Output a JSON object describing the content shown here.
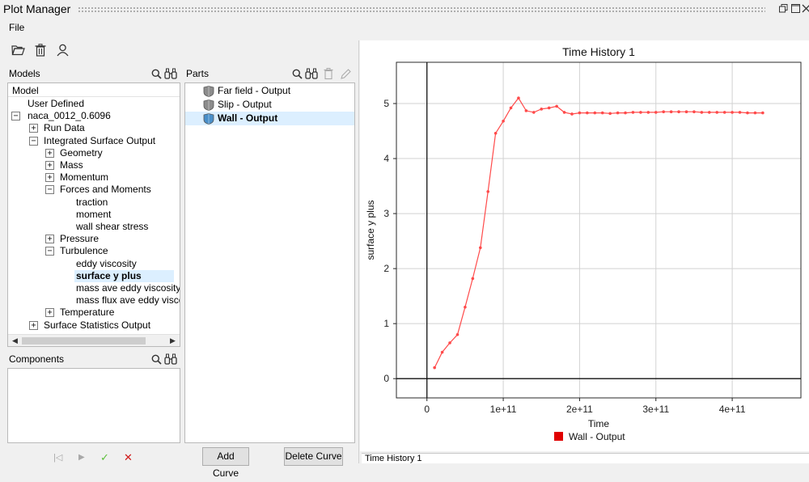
{
  "window": {
    "title": "Plot Manager"
  },
  "menu": {
    "file": "File"
  },
  "models": {
    "header": "Models",
    "column": "Model",
    "tree": [
      {
        "label": "User Defined",
        "level": 0,
        "exp": ""
      },
      {
        "label": "naca_0012_0.6096",
        "level": 0,
        "exp": "-"
      },
      {
        "label": "Run Data",
        "level": 1,
        "exp": "+"
      },
      {
        "label": "Integrated Surface Output",
        "level": 1,
        "exp": "-"
      },
      {
        "label": "Geometry",
        "level": 2,
        "exp": "+"
      },
      {
        "label": "Mass",
        "level": 2,
        "exp": "+"
      },
      {
        "label": "Momentum",
        "level": 2,
        "exp": "+"
      },
      {
        "label": "Forces and Moments",
        "level": 2,
        "exp": "-"
      },
      {
        "label": "traction",
        "level": 3,
        "exp": ""
      },
      {
        "label": "moment",
        "level": 3,
        "exp": ""
      },
      {
        "label": "wall shear stress",
        "level": 3,
        "exp": ""
      },
      {
        "label": "Pressure",
        "level": 2,
        "exp": "+"
      },
      {
        "label": "Turbulence",
        "level": 2,
        "exp": "-"
      },
      {
        "label": "eddy viscosity",
        "level": 3,
        "exp": ""
      },
      {
        "label": "surface y plus",
        "level": 3,
        "exp": "",
        "selected": true
      },
      {
        "label": "mass ave eddy viscosity",
        "level": 3,
        "exp": ""
      },
      {
        "label": "mass flux ave eddy viscos",
        "level": 3,
        "exp": ""
      },
      {
        "label": "Temperature",
        "level": 2,
        "exp": "+"
      },
      {
        "label": "Surface Statistics Output",
        "level": 1,
        "exp": "+"
      }
    ]
  },
  "components": {
    "header": "Components"
  },
  "parts": {
    "header": "Parts",
    "items": [
      {
        "label": "Far field - Output",
        "selected": false
      },
      {
        "label": "Slip - Output",
        "selected": false
      },
      {
        "label": "Wall - Output",
        "selected": true
      }
    ]
  },
  "buttons": {
    "add_curve": "Add Curve",
    "delete_curve": "Delete Curve"
  },
  "player": {
    "first": "|◁",
    "play": "▶",
    "ok": "✓",
    "cancel": "✕"
  },
  "bottom_tab": "Time History 1",
  "colors": {
    "series": "#ff4a4a",
    "legend": "#e00000",
    "selection": "#dcefff"
  },
  "chart_data": {
    "type": "line",
    "title": "Time History 1",
    "xlabel": "Time",
    "ylabel": "surface y plus",
    "xlim": [
      -40000000000.0,
      490000000000.0
    ],
    "ylim": [
      -0.35,
      5.75
    ],
    "xticks": [
      0,
      100000000000.0,
      200000000000.0,
      300000000000.0,
      400000000000.0
    ],
    "xtick_labels": [
      "0",
      "1e+11",
      "2e+11",
      "3e+11",
      "4e+11"
    ],
    "yticks": [
      0,
      1,
      2,
      3,
      4,
      5
    ],
    "ytick_labels": [
      "0",
      "1",
      "2",
      "3",
      "4",
      "5"
    ],
    "grid": true,
    "legend": "bottom-center",
    "series": [
      {
        "name": "Wall - Output",
        "x": [
          10000000000.0,
          20000000000.0,
          30000000000.0,
          40000000000.0,
          50000000000.0,
          60000000000.0,
          70000000000.0,
          80000000000.0,
          90000000000.0,
          100000000000.0,
          110000000000.0,
          120000000000.0,
          130000000000.0,
          140000000000.0,
          150000000000.0,
          160000000000.0,
          170000000000.0,
          180000000000.0,
          190000000000.0,
          200000000000.0,
          210000000000.0,
          220000000000.0,
          230000000000.0,
          240000000000.0,
          250000000000.0,
          260000000000.0,
          270000000000.0,
          280000000000.0,
          290000000000.0,
          300000000000.0,
          310000000000.0,
          320000000000.0,
          330000000000.0,
          340000000000.0,
          350000000000.0,
          360000000000.0,
          370000000000.0,
          380000000000.0,
          390000000000.0,
          400000000000.0,
          410000000000.0,
          420000000000.0,
          430000000000.0,
          440000000000.0
        ],
        "y": [
          0.2,
          0.48,
          0.65,
          0.8,
          1.3,
          1.82,
          2.38,
          3.4,
          4.46,
          4.68,
          4.92,
          5.1,
          4.87,
          4.84,
          4.9,
          4.92,
          4.95,
          4.84,
          4.81,
          4.83,
          4.83,
          4.83,
          4.83,
          4.82,
          4.83,
          4.83,
          4.84,
          4.84,
          4.84,
          4.84,
          4.85,
          4.85,
          4.85,
          4.85,
          4.85,
          4.84,
          4.84,
          4.84,
          4.84,
          4.84,
          4.84,
          4.83,
          4.83,
          4.83
        ]
      }
    ]
  }
}
